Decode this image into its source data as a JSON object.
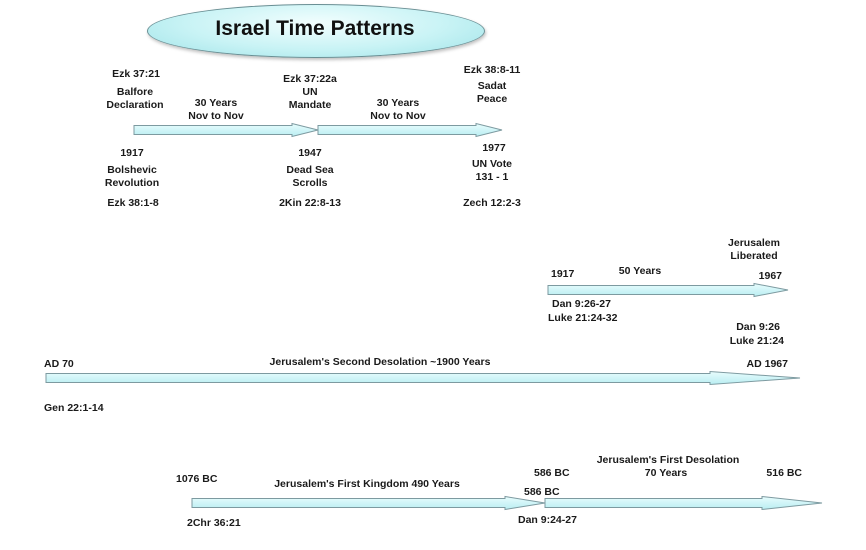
{
  "title": "Israel Time Patterns",
  "colors": {
    "arrow_fill": "#d4f7fa",
    "arrow_stroke": "#7d9aa0",
    "title_fill": "#c8f3f5",
    "text": "#1a1a1a"
  },
  "section1": {
    "above": {
      "left_ref": "Ezk 37:21",
      "left_event": [
        "Balfore",
        "Declaration"
      ],
      "mid_ref": "Ezk 37:22a",
      "mid_event": [
        "UN",
        "Mandate"
      ],
      "right_ref": "Ezk 38:8-11",
      "right_event": [
        "Sadat",
        "Peace"
      ]
    },
    "spans": [
      [
        "30 Years",
        "Nov to Nov"
      ],
      [
        "30 Years",
        "Nov to Nov"
      ]
    ],
    "below": {
      "left_year": "1917",
      "left_event": [
        "Bolshevic",
        "Revolution"
      ],
      "left_ref": "Ezk 38:1-8",
      "mid_year": "1947",
      "mid_event": [
        "Dead Sea",
        "Scrolls"
      ],
      "mid_ref": "2Kin 22:8-13",
      "right_year": "1977",
      "right_event": [
        "UN Vote",
        "131 - 1"
      ],
      "right_ref": "Zech 12:2-3"
    }
  },
  "section2": {
    "top_event": [
      "Jerusalem",
      "Liberated"
    ],
    "start_year": "1917",
    "span": "50 Years",
    "end_year": "1967",
    "left_refs": [
      "Dan 9:26-27",
      "Luke 21:24-32"
    ],
    "right_refs": [
      "Dan 9:26",
      "Luke 21:24"
    ]
  },
  "section3": {
    "start": "AD 70",
    "label": "Jerusalem's Second Desolation ~1900 Years",
    "end": "AD 1967",
    "ref": "Gen 22:1-14"
  },
  "section4": {
    "start": "1076 BC",
    "kingdom_label": "Jerusalem's First Kingdom 490 Years",
    "mid_top": "586 BC",
    "mid_arrow": "586 BC",
    "desolation_label": [
      "Jerusalem's First Desolation",
      "70 Years"
    ],
    "end": "516 BC",
    "left_ref": "2Chr 36:21",
    "mid_ref": "Dan 9:24-27"
  }
}
